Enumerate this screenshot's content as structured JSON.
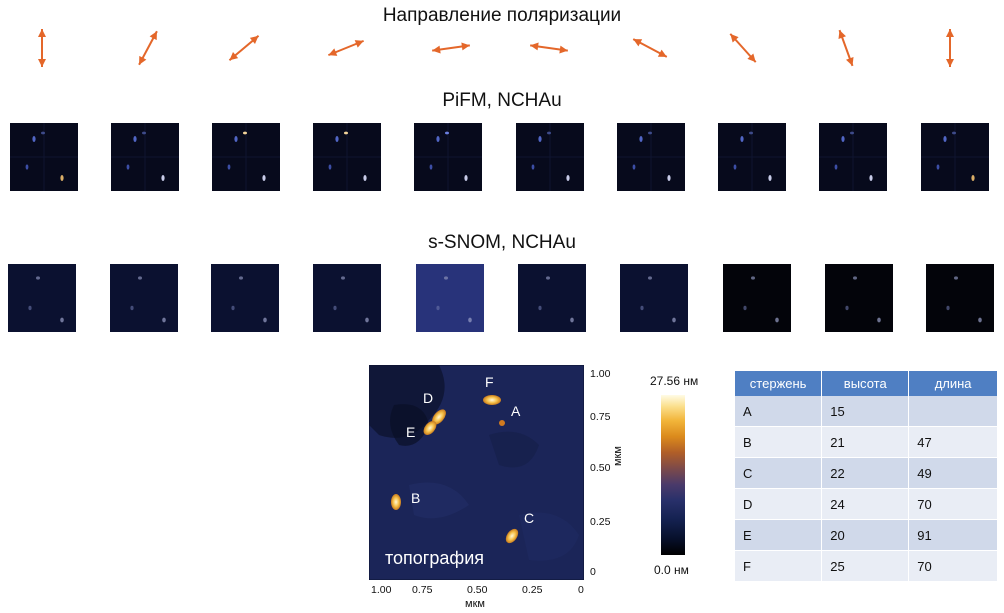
{
  "titles": {
    "polarization": "Направление поляризации",
    "pifm": "PiFM, NCHAu",
    "ssnom": "s-SNOM, NCHAu"
  },
  "arrow_color": "#e4672a",
  "polarization_angles_deg": [
    90,
    62,
    40,
    22,
    8,
    -8,
    -28,
    -48,
    -70,
    -90
  ],
  "topography": {
    "caption": "топография",
    "rods": [
      "A",
      "B",
      "C",
      "D",
      "E",
      "F"
    ],
    "x_ticks": [
      "1.00",
      "0.75",
      "0.50",
      "0.25",
      "0"
    ],
    "y_ticks": [
      "1.00",
      "0.75",
      "0.50",
      "0.25",
      "0"
    ],
    "x_unit": "мкм",
    "y_unit": "мкм"
  },
  "colorbar": {
    "max": "27.56 нм",
    "min": "0.0 нм"
  },
  "table": {
    "headers": [
      "стержень",
      "высота",
      "длина"
    ],
    "rows": [
      [
        "A",
        "15",
        ""
      ],
      [
        "B",
        "21",
        "47"
      ],
      [
        "C",
        "22",
        "49"
      ],
      [
        "D",
        "24",
        "70"
      ],
      [
        "E",
        "20",
        "91"
      ],
      [
        "F",
        "25",
        "70"
      ]
    ]
  }
}
